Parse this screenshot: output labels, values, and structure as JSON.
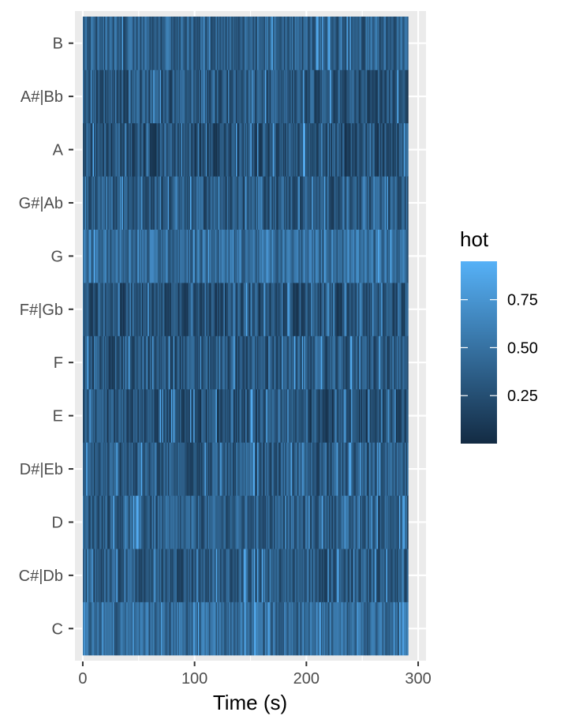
{
  "chart_data": {
    "type": "heatmap",
    "title": "",
    "xlabel": "Time (s)",
    "ylabel": "",
    "xlim": [
      -7,
      307
    ],
    "x_range": [
      0,
      291
    ],
    "x_ticks": [
      0,
      100,
      200,
      300
    ],
    "y_categories": [
      "C",
      "C#|Db",
      "D",
      "D#|Eb",
      "E",
      "F",
      "F#|Gb",
      "G",
      "G#|Ab",
      "A",
      "A#|Bb",
      "B"
    ],
    "grid": true,
    "legend": {
      "title": "hot",
      "position": "right",
      "ticks": [
        0.25,
        0.5,
        0.75
      ],
      "tick_labels": [
        "0.25",
        "0.50",
        "0.75"
      ],
      "range": [
        0,
        0.95
      ],
      "colors": [
        "#132B43",
        "#56B1F7"
      ]
    },
    "bands": [
      {
        "note": "C",
        "level": 0.45
      },
      {
        "note": "C#|Db",
        "level": 0.33
      },
      {
        "note": "D",
        "level": 0.35
      },
      {
        "note": "D#|Eb",
        "level": 0.32
      },
      {
        "note": "E",
        "level": 0.25
      },
      {
        "note": "F",
        "level": 0.3
      },
      {
        "note": "F#|Gb",
        "level": 0.27
      },
      {
        "note": "G",
        "level": 0.47
      },
      {
        "note": "G#|Ab",
        "level": 0.33
      },
      {
        "note": "A",
        "level": 0.26
      },
      {
        "note": "A#|Bb",
        "level": 0.3
      },
      {
        "note": "B",
        "level": 0.38
      }
    ]
  },
  "colors": {
    "panel_bg": "#EBEBEB",
    "grid": "#FFFFFF",
    "low": "#132B43",
    "high": "#56B1F7"
  }
}
